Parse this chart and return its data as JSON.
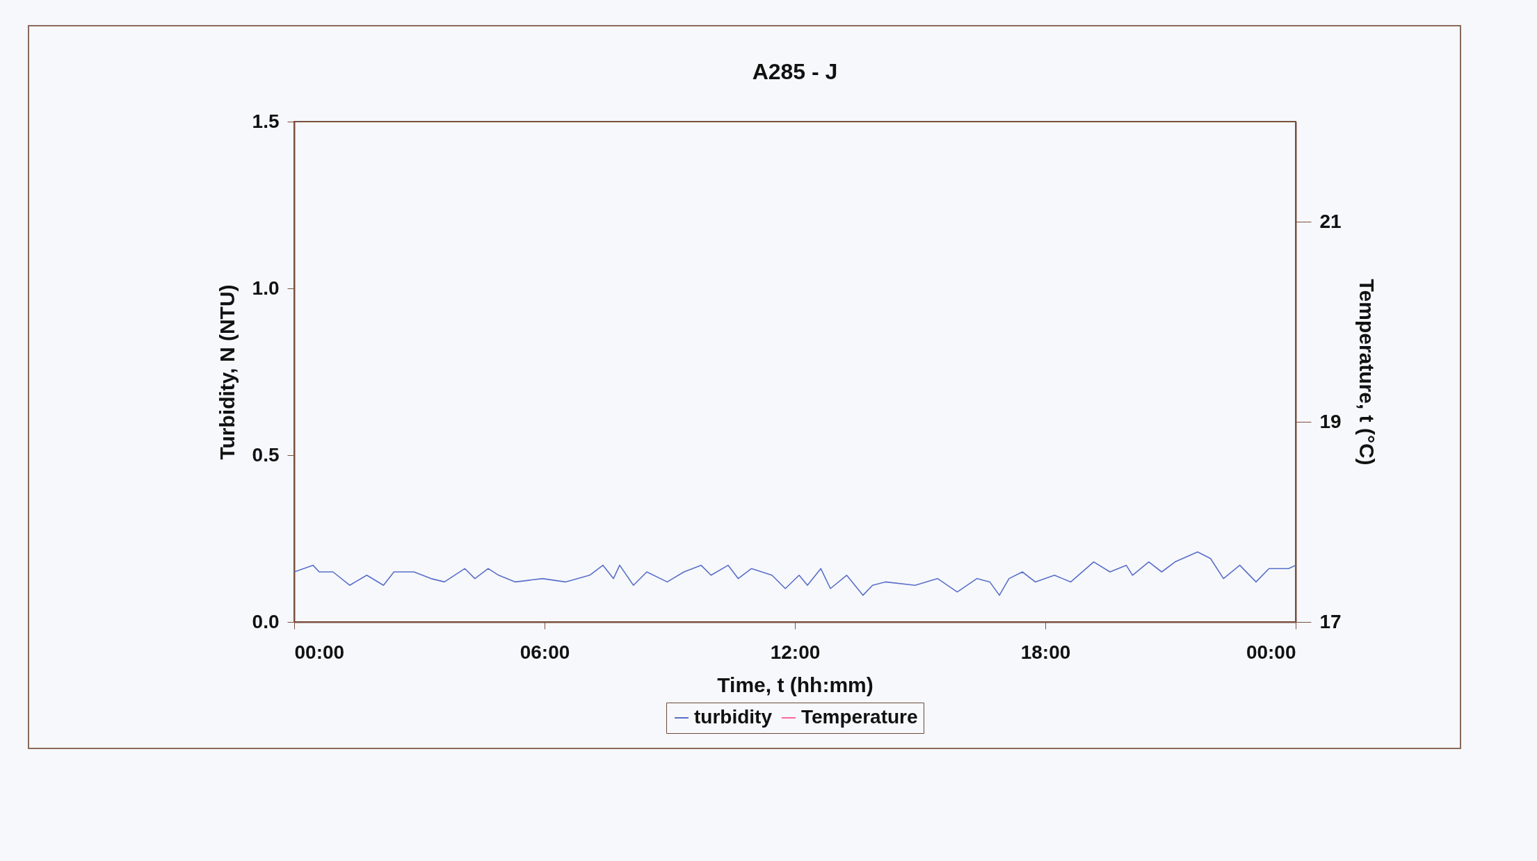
{
  "chart_data": {
    "type": "line",
    "title": "A285 - J",
    "xlabel": "Time, t (hh:mm)",
    "ylabel": "Turbidity, N (NTU)",
    "y2label": "Temperature, t (°C)",
    "xlim": [
      0,
      24
    ],
    "xticks": [
      {
        "value": 0,
        "label": "00:00"
      },
      {
        "value": 6,
        "label": "06:00"
      },
      {
        "value": 12,
        "label": "12:00"
      },
      {
        "value": 18,
        "label": "18:00"
      },
      {
        "value": 24,
        "label": "00:00"
      }
    ],
    "ylim": [
      0,
      1.5
    ],
    "yticks": [
      {
        "value": 0,
        "label": "0.0"
      },
      {
        "value": 0.5,
        "label": "0.5"
      },
      {
        "value": 1,
        "label": "1.0"
      },
      {
        "value": 1.5,
        "label": "1.5"
      }
    ],
    "y2lim": [
      17,
      22
    ],
    "y2ticks": [
      17,
      19,
      21
    ],
    "grid": false,
    "legend": "bottom",
    "marker": "none",
    "line_style": "solid",
    "series": [
      {
        "name": "turbidity",
        "color": "#5a6ec8",
        "x": [
          0,
          0.45,
          0.6,
          0.93,
          1.33,
          1.74,
          2.14,
          2.39,
          2.87,
          3.28,
          3.6,
          4.09,
          4.33,
          4.65,
          4.9,
          5.3,
          5.95,
          6.5,
          7.08,
          7.4,
          7.65,
          7.8,
          8.13,
          8.45,
          8.94,
          9.34,
          9.75,
          9.99,
          10.4,
          10.64,
          10.96,
          11.45,
          11.77,
          12.1,
          12.3,
          12.62,
          12.85,
          13.24,
          13.63,
          13.86,
          14.17,
          14.88,
          15.42,
          15.89,
          16.36,
          16.67,
          16.9,
          17.13,
          17.45,
          17.76,
          18.22,
          18.61,
          19.16,
          19.55,
          19.94,
          20.09,
          20.48,
          20.79,
          21.11,
          21.65,
          21.96,
          22.27,
          22.66,
          23.05,
          23.36,
          23.83,
          24
        ],
        "values": [
          0.15,
          0.17,
          0.15,
          0.15,
          0.11,
          0.14,
          0.11,
          0.15,
          0.15,
          0.13,
          0.12,
          0.16,
          0.13,
          0.16,
          0.14,
          0.12,
          0.13,
          0.12,
          0.14,
          0.17,
          0.13,
          0.17,
          0.11,
          0.15,
          0.12,
          0.15,
          0.17,
          0.14,
          0.17,
          0.13,
          0.16,
          0.14,
          0.1,
          0.14,
          0.11,
          0.16,
          0.1,
          0.14,
          0.08,
          0.11,
          0.12,
          0.11,
          0.13,
          0.09,
          0.13,
          0.12,
          0.08,
          0.13,
          0.15,
          0.12,
          0.14,
          0.12,
          0.18,
          0.15,
          0.17,
          0.14,
          0.18,
          0.15,
          0.18,
          0.21,
          0.19,
          0.13,
          0.17,
          0.12,
          0.16,
          0.16,
          0.17
        ]
      },
      {
        "name": "Temperature",
        "color": "#ff6699",
        "axis": "y2"
      }
    ]
  }
}
